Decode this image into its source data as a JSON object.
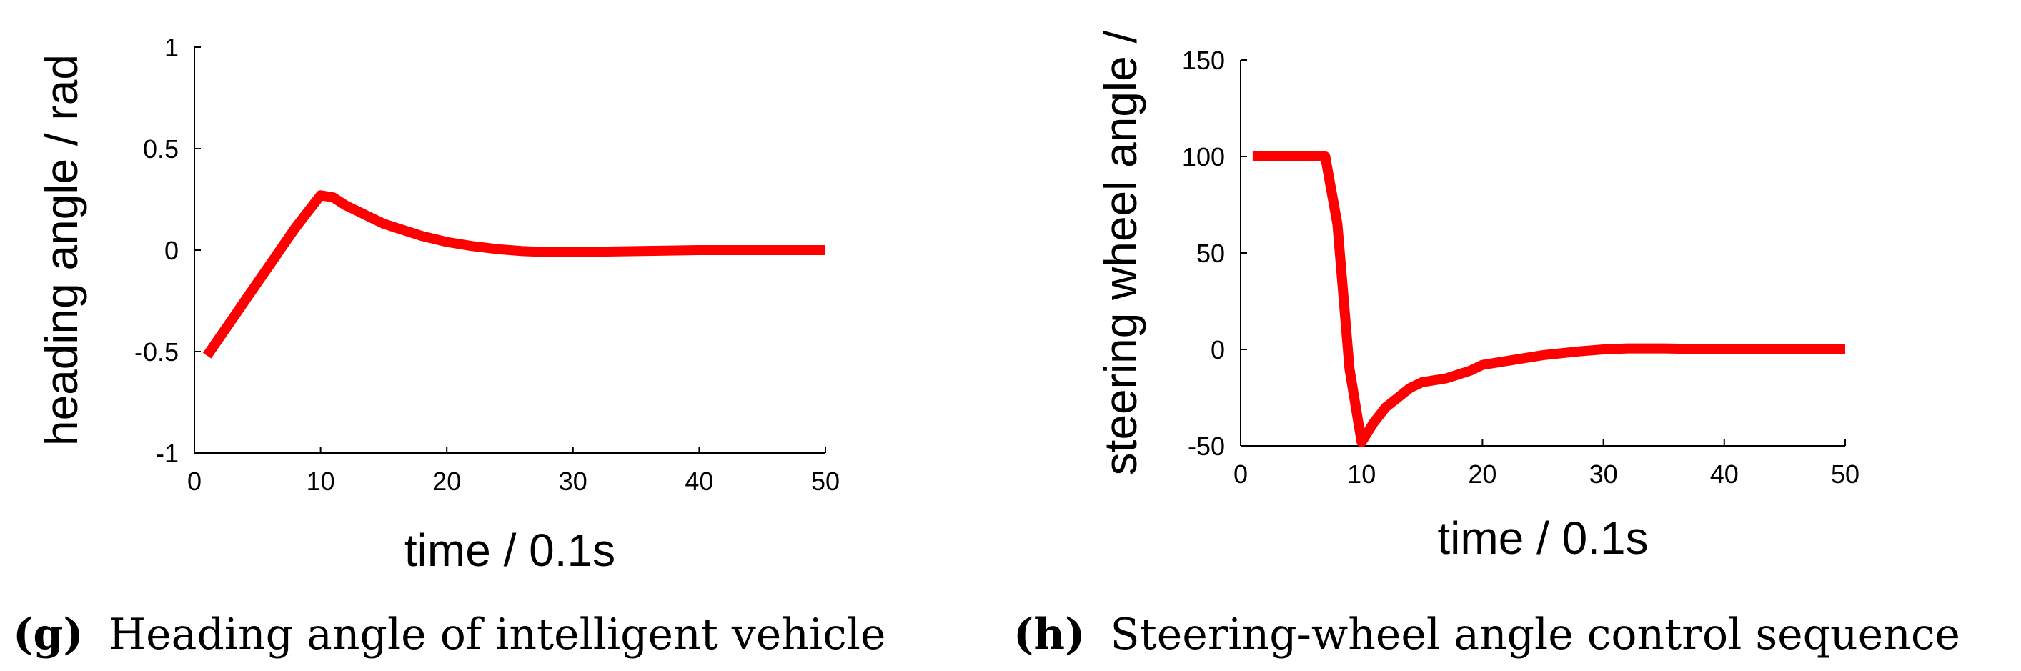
{
  "colors": {
    "series": "#ff0000",
    "axis": "#000000"
  },
  "chart_data": [
    {
      "type": "line",
      "caption_letter": "(g)",
      "caption_text": "Heading angle of intelligent vehicle",
      "xlabel": "time / 0.1s",
      "ylabel": "heading angle / rad",
      "xlim": [
        0,
        50
      ],
      "ylim": [
        -1,
        1
      ],
      "xticks": [
        0,
        10,
        20,
        30,
        40,
        50
      ],
      "xtick_labels": [
        "0",
        "10",
        "20",
        "30",
        "40",
        "50"
      ],
      "yticks": [
        -1,
        -0.5,
        0,
        0.5,
        1
      ],
      "ytick_labels": [
        "-1",
        "-0.5",
        "0",
        "0.5",
        "1"
      ],
      "series": [
        {
          "name": "heading angle",
          "x": [
            1,
            2,
            3,
            4,
            5,
            6,
            7,
            8,
            9,
            10,
            11,
            12,
            13,
            14,
            15,
            16,
            18,
            20,
            22,
            24,
            26,
            28,
            30,
            35,
            40,
            45,
            50
          ],
          "y": [
            -0.52,
            -0.43,
            -0.34,
            -0.25,
            -0.16,
            -0.07,
            0.02,
            0.11,
            0.19,
            0.27,
            0.26,
            0.22,
            0.19,
            0.16,
            0.13,
            0.11,
            0.07,
            0.04,
            0.02,
            0.005,
            -0.005,
            -0.01,
            -0.01,
            -0.005,
            0.0,
            0.0,
            0.0
          ]
        }
      ]
    },
    {
      "type": "line",
      "caption_letter": "(h)",
      "caption_text": "Steering-wheel angle control sequence",
      "xlabel": "time / 0.1s",
      "ylabel": "steering wheel angle /",
      "xlim": [
        0,
        50
      ],
      "ylim": [
        -50,
        150
      ],
      "xticks": [
        0,
        10,
        20,
        30,
        40,
        50
      ],
      "xtick_labels": [
        "0",
        "10",
        "20",
        "30",
        "40",
        "50"
      ],
      "yticks": [
        -50,
        0,
        50,
        100,
        150
      ],
      "ytick_labels": [
        "-50",
        "0",
        "50",
        "100",
        "150"
      ],
      "series": [
        {
          "name": "steering wheel angle",
          "x": [
            1,
            2,
            3,
            4,
            5,
            6,
            7,
            8,
            9,
            10,
            11,
            12,
            13,
            14,
            15,
            16,
            17,
            18,
            19,
            20,
            22,
            25,
            28,
            30,
            32,
            35,
            40,
            45,
            50
          ],
          "y": [
            100,
            100,
            100,
            100,
            100,
            100,
            100,
            65,
            -10,
            -48,
            -38,
            -30,
            -25,
            -20,
            -17,
            -16,
            -15,
            -13,
            -11,
            -8,
            -6,
            -3,
            -1,
            0,
            0.5,
            0.5,
            0,
            0,
            0
          ]
        }
      ]
    }
  ]
}
